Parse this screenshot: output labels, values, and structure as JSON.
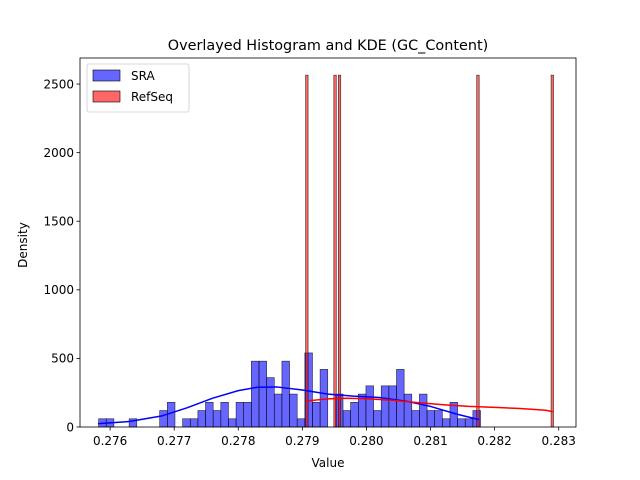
{
  "chart_data": {
    "type": "histogram",
    "title": "Overlayed Histogram and KDE (GC_Content)",
    "xlabel": "Value",
    "ylabel": "Density",
    "xlim": [
      0.27553,
      0.28327
    ],
    "ylim": [
      0,
      2690
    ],
    "grid": false,
    "legend_placement": "top-left",
    "xticks": [
      0.276,
      0.277,
      0.278,
      0.279,
      0.28,
      0.281,
      0.282,
      0.283
    ],
    "xtick_labels": [
      "0.276",
      "0.277",
      "0.278",
      "0.279",
      "0.280",
      "0.281",
      "0.282",
      "0.283"
    ],
    "yticks": [
      0,
      500,
      1000,
      1500,
      2000,
      2500
    ],
    "ytick_labels": [
      "0",
      "500",
      "1000",
      "1500",
      "2000",
      "2500"
    ],
    "series": [
      {
        "name": "SRA",
        "color": "#0000ff",
        "bin_start": 0.27582,
        "bin_width": 0.0001192,
        "density": [
          60,
          60,
          0,
          0,
          60,
          0,
          0,
          0,
          120,
          180,
          0,
          60,
          60,
          120,
          180,
          120,
          180,
          60,
          180,
          180,
          480,
          480,
          360,
          240,
          480,
          240,
          60,
          540,
          180,
          420,
          0,
          240,
          120,
          180,
          240,
          300,
          120,
          300,
          300,
          420,
          240,
          120,
          240,
          120,
          120,
          60,
          180,
          60,
          60,
          120
        ],
        "kde_x": [
          0.27582,
          0.2763,
          0.2768,
          0.2772,
          0.2776,
          0.278,
          0.2783,
          0.2786,
          0.279,
          0.2794,
          0.2798,
          0.2802,
          0.2806,
          0.281,
          0.2814,
          0.28175
        ],
        "kde_y": [
          25,
          40,
          80,
          140,
          210,
          265,
          290,
          292,
          270,
          240,
          225,
          215,
          190,
          150,
          95,
          55
        ]
      },
      {
        "name": "RefSeq",
        "color": "#ff0000",
        "bars": [
          {
            "x": 0.27907,
            "density": 2565
          },
          {
            "x": 0.27951,
            "density": 2565
          },
          {
            "x": 0.27958,
            "density": 2565
          },
          {
            "x": 0.28174,
            "density": 2565
          },
          {
            "x": 0.2829,
            "density": 2565
          }
        ],
        "bar_width": 3.86e-05,
        "kde_x": [
          0.27907,
          0.2794,
          0.2797,
          0.28,
          0.2804,
          0.2808,
          0.2812,
          0.2816,
          0.282,
          0.2824,
          0.2828,
          0.2829
        ],
        "kde_y": [
          190,
          205,
          210,
          206,
          195,
          178,
          162,
          150,
          143,
          135,
          122,
          112
        ]
      }
    ]
  }
}
